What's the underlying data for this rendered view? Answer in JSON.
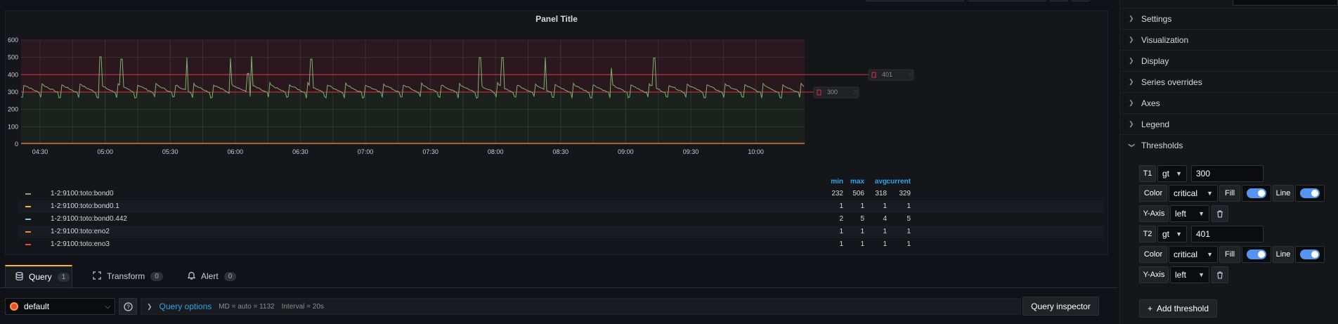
{
  "panel": {
    "title": "Panel Title"
  },
  "chart_data": {
    "type": "line",
    "title": "Panel Title",
    "ylim": [
      0,
      600
    ],
    "yticks": [
      "600",
      "500",
      "400",
      "300",
      "200",
      "100",
      "0"
    ],
    "xticks": [
      "04:30",
      "05:00",
      "05:30",
      "06:00",
      "06:30",
      "07:00",
      "07:30",
      "08:00",
      "08:30",
      "09:00",
      "09:30",
      "10:00"
    ],
    "grid": true,
    "legend_placement": "bottom",
    "thresholds": [
      {
        "op": "gt",
        "value": 300,
        "color": "#e02f44",
        "fill_above_color": "#3d1c22"
      },
      {
        "op": "gt",
        "value": 401,
        "color": "#e02f44"
      }
    ],
    "series": [
      {
        "name": "1-2:9100:toto:bond0",
        "color": "#7eb26d",
        "min": 232,
        "max": 506,
        "avg": 318,
        "current": 329
      },
      {
        "name": "1-2:9100:toto:bond0.1",
        "color": "#eab839",
        "min": 1,
        "max": 1,
        "avg": 1,
        "current": 1
      },
      {
        "name": "1-2:9100:toto:bond0.442",
        "color": "#6ed0e0",
        "min": 2,
        "max": 5,
        "avg": 4,
        "current": 5
      },
      {
        "name": "1-2:9100:toto:eno2",
        "color": "#ef843c",
        "min": 1,
        "max": 1,
        "avg": 1,
        "current": 1
      },
      {
        "name": "1-2:9100:toto:eno3",
        "color": "#e24d42",
        "min": 1,
        "max": 1,
        "avg": 1,
        "current": 1
      }
    ],
    "spikes": [
      503,
      490,
      500,
      495,
      507,
      408,
      490,
      500,
      500,
      500,
      440,
      497
    ]
  },
  "legend": {
    "headers": {
      "min": "min",
      "max": "max",
      "avg": "avg",
      "current": "current"
    }
  },
  "threshold_handles": [
    {
      "value": "401"
    },
    {
      "value": "300"
    }
  ],
  "tabs": [
    {
      "label": "Query",
      "count": "1"
    },
    {
      "label": "Transform",
      "count": "0"
    },
    {
      "label": "Alert",
      "count": "0"
    }
  ],
  "query": {
    "datasource": "default",
    "help": "?",
    "options_label": "Query options",
    "md": "MD = auto = 1132",
    "interval": "Interval = 20s",
    "inspector": "Query inspector"
  },
  "options": {
    "sections": [
      "Settings",
      "Visualization",
      "Display",
      "Series overrides",
      "Axes",
      "Legend",
      "Thresholds"
    ],
    "thresholds": [
      {
        "label": "T1",
        "op": "gt",
        "value": "300",
        "color_label": "Color",
        "color": "critical",
        "fill_label": "Fill",
        "line_label": "Line",
        "yaxis_label": "Y-Axis",
        "yaxis": "left"
      },
      {
        "label": "T2",
        "op": "gt",
        "value": "401",
        "color_label": "Color",
        "color": "critical",
        "fill_label": "Fill",
        "line_label": "Line",
        "yaxis_label": "Y-Axis",
        "yaxis": "left"
      }
    ],
    "add_threshold": "Add threshold"
  }
}
